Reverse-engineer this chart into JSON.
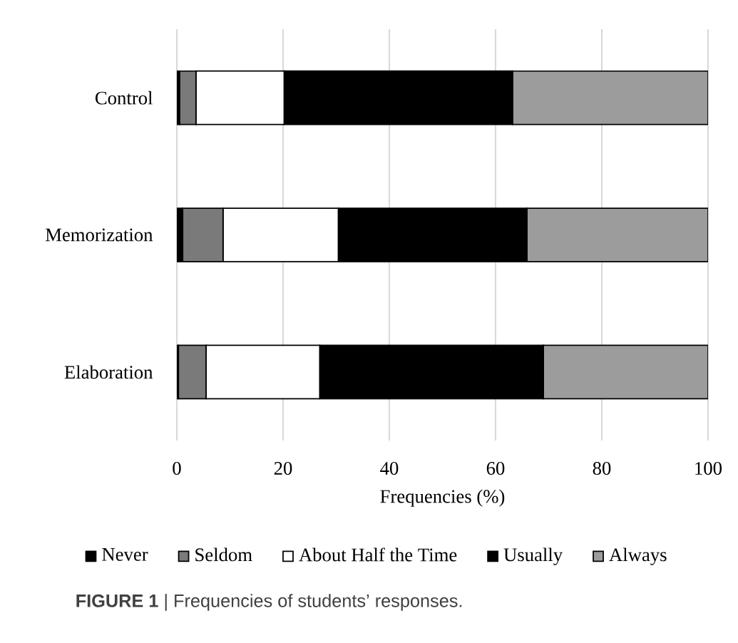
{
  "chart_data": {
    "type": "bar",
    "orientation": "horizontal",
    "stacked": true,
    "categories": [
      "Control",
      "Memorization",
      "Elaboration"
    ],
    "series": [
      {
        "name": "Never",
        "color": "#000000",
        "values": [
          0.5,
          1.1,
          0.3
        ]
      },
      {
        "name": "Seldom",
        "color": "#7a7a7a",
        "values": [
          3.1,
          7.6,
          5.2
        ]
      },
      {
        "name": "About Half the Time",
        "color": "#ffffff",
        "values": [
          16.6,
          21.7,
          21.4
        ]
      },
      {
        "name": "Usually",
        "color": "#000000",
        "values": [
          43.0,
          35.5,
          42.1
        ]
      },
      {
        "name": "Always",
        "color": "#9c9c9c",
        "values": [
          36.8,
          34.1,
          31.0
        ]
      }
    ],
    "xlim": [
      0,
      100
    ],
    "xticks": [
      0,
      20,
      40,
      60,
      80,
      100
    ],
    "xlabel": "Frequencies  (%)",
    "grid": "x",
    "legend": "bottom",
    "annotations": [
      "**FIGURE 1** | Frequencies of students’ responses."
    ]
  }
}
